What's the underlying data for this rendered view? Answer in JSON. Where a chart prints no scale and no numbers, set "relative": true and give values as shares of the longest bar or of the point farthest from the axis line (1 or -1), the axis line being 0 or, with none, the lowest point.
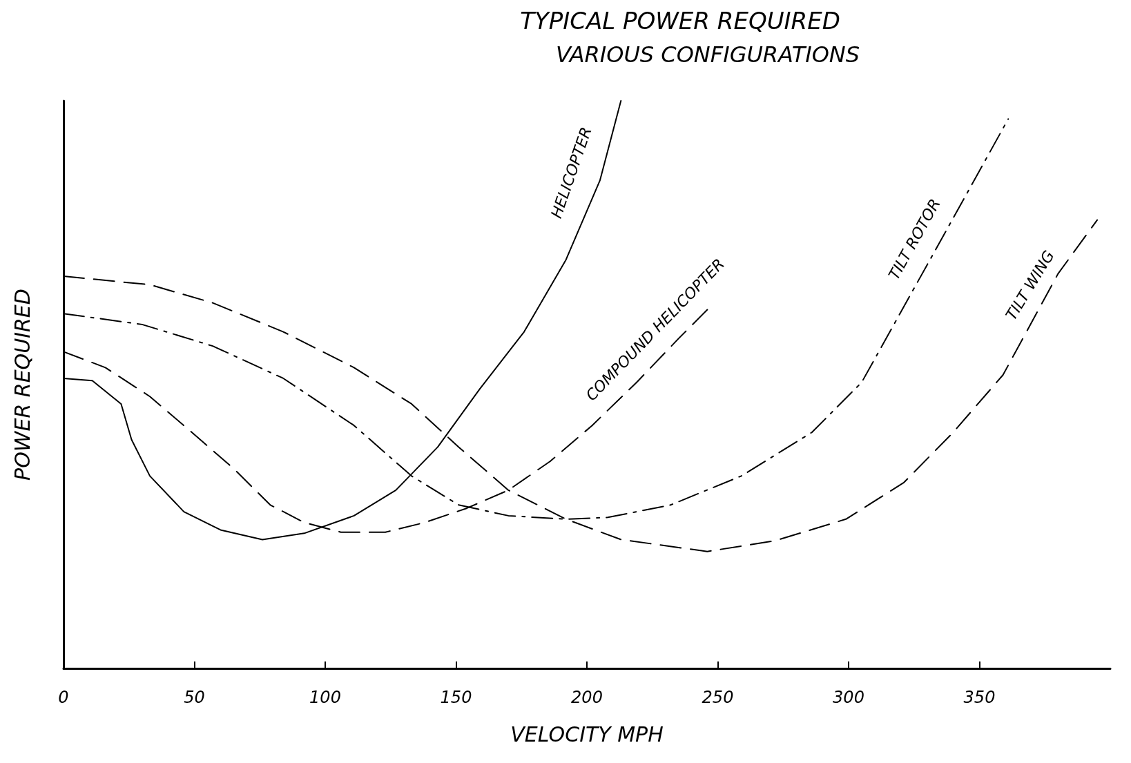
{
  "chart_data": {
    "type": "line",
    "title": "TYPICAL POWER REQUIRED",
    "subtitle": "VARIOUS CONFIGURATIONS",
    "xlabel": "VELOCITY MPH",
    "ylabel": "POWER REQUIRED",
    "relative": true,
    "xlim": [
      0,
      400
    ],
    "xticks": [
      0,
      50,
      100,
      150,
      200,
      250,
      300,
      350
    ],
    "grid": false,
    "legend": false,
    "marker": "none",
    "series": [
      {
        "name": "HELICOPTER",
        "color": "#000000",
        "line_style": "solid",
        "x": [
          0,
          11,
          22,
          26,
          33,
          46,
          60,
          76,
          92,
          111,
          127,
          143,
          159,
          176,
          192,
          205,
          213
        ],
        "values": [
          0.511,
          0.507,
          0.466,
          0.403,
          0.339,
          0.276,
          0.244,
          0.227,
          0.238,
          0.269,
          0.314,
          0.39,
          0.492,
          0.593,
          0.72,
          0.86,
          1.0
        ]
      },
      {
        "name": "COMPOUND HELICOPTER",
        "color": "#000000",
        "line_style": "dashed",
        "x": [
          0,
          16,
          33,
          49,
          65,
          79,
          92,
          106,
          123,
          138,
          154,
          170,
          186,
          202,
          219,
          235,
          246
        ],
        "values": [
          0.558,
          0.53,
          0.479,
          0.416,
          0.352,
          0.288,
          0.257,
          0.24,
          0.24,
          0.257,
          0.282,
          0.314,
          0.365,
          0.428,
          0.504,
          0.581,
          0.632
        ]
      },
      {
        "name": "TILT ROTOR",
        "color": "#000000",
        "line_style": "dashdot",
        "x": [
          0,
          30,
          57,
          84,
          111,
          133,
          151,
          170,
          192,
          208,
          232,
          259,
          286,
          305,
          345,
          361
        ],
        "values": [
          0.625,
          0.606,
          0.568,
          0.511,
          0.428,
          0.339,
          0.288,
          0.269,
          0.263,
          0.266,
          0.288,
          0.339,
          0.416,
          0.504,
          0.835,
          0.968
        ]
      },
      {
        "name": "TILT WING",
        "color": "#000000",
        "line_style": "dashed",
        "x": [
          0,
          33,
          57,
          84,
          111,
          133,
          151,
          170,
          192,
          213,
          246,
          272,
          299,
          321,
          340,
          359,
          380,
          395
        ],
        "values": [
          0.691,
          0.676,
          0.644,
          0.593,
          0.53,
          0.466,
          0.39,
          0.314,
          0.263,
          0.227,
          0.206,
          0.225,
          0.263,
          0.327,
          0.416,
          0.517,
          0.695,
          0.79
        ]
      }
    ]
  }
}
